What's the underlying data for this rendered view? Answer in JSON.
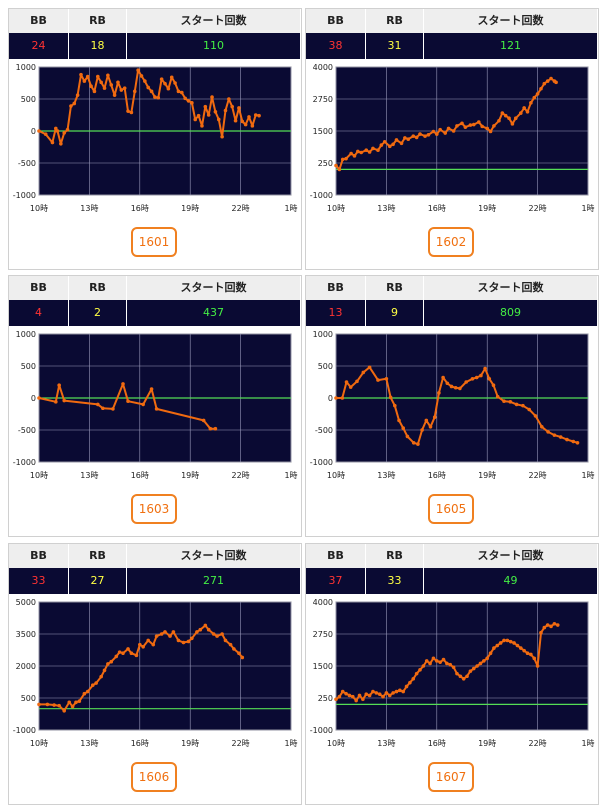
{
  "headers": {
    "bb": "BB",
    "rb": "RB",
    "starts": "スタート回数"
  },
  "colors": {
    "bb": "#ff3333",
    "rb": "#ffff44",
    "starts": "#44ee44",
    "line": "#f06a10",
    "zero": "#55dd55",
    "bg": "#0a0a33"
  },
  "panels": [
    {
      "unit": "1601",
      "bb": "24",
      "rb": "18",
      "starts": "110"
    },
    {
      "unit": "1602",
      "bb": "38",
      "rb": "31",
      "starts": "121"
    },
    {
      "unit": "1603",
      "bb": "4",
      "rb": "2",
      "starts": "437"
    },
    {
      "unit": "1605",
      "bb": "13",
      "rb": "9",
      "starts": "809"
    },
    {
      "unit": "1606",
      "bb": "33",
      "rb": "27",
      "starts": "271"
    },
    {
      "unit": "1607",
      "bb": "37",
      "rb": "33",
      "starts": "49"
    }
  ],
  "chart_data": [
    {
      "type": "line",
      "xticks": [
        "10時",
        "13時",
        "16時",
        "19時",
        "22時",
        "1時"
      ],
      "xlim": [
        10,
        25
      ],
      "yticks": [
        "1000",
        "500",
        "0",
        "-500",
        "-1000"
      ],
      "ylim": [
        -1000,
        1000
      ],
      "x": [
        10,
        10.4,
        10.8,
        11.0,
        11.1,
        11.3,
        11.5,
        11.7,
        11.9,
        12.1,
        12.3,
        12.5,
        12.7,
        12.9,
        13.1,
        13.3,
        13.5,
        13.7,
        13.9,
        14.1,
        14.3,
        14.5,
        14.7,
        14.9,
        15.1,
        15.3,
        15.5,
        15.7,
        15.9,
        16.1,
        16.3,
        16.5,
        16.7,
        16.9,
        17.1,
        17.3,
        17.5,
        17.7,
        17.9,
        18.1,
        18.3,
        18.5,
        18.7,
        18.9,
        19.1,
        19.3,
        19.5,
        19.7,
        19.9,
        20.1,
        20.3,
        20.5,
        20.7,
        20.9,
        21.1,
        21.3,
        21.5,
        21.7,
        21.9,
        22.1,
        22.3,
        22.5,
        22.7,
        22.9,
        23.1
      ],
      "y": [
        0,
        -50,
        -180,
        40,
        0,
        -200,
        -30,
        20,
        390,
        430,
        560,
        880,
        780,
        850,
        700,
        620,
        850,
        760,
        670,
        870,
        720,
        560,
        760,
        640,
        670,
        310,
        290,
        620,
        950,
        860,
        780,
        680,
        620,
        530,
        520,
        810,
        740,
        660,
        840,
        750,
        620,
        600,
        510,
        470,
        440,
        180,
        240,
        80,
        380,
        250,
        530,
        300,
        180,
        -90,
        320,
        500,
        380,
        160,
        360,
        150,
        100,
        220,
        80,
        250,
        240
      ]
    },
    {
      "type": "line",
      "xticks": [
        "10時",
        "13時",
        "16時",
        "19時",
        "22時",
        "1時"
      ],
      "xlim": [
        10,
        25
      ],
      "yticks": [
        "4000",
        "2750",
        "1500",
        "250",
        "-1000"
      ],
      "ylim": [
        -1000,
        4000
      ],
      "x": [
        10,
        10.2,
        10.4,
        10.6,
        10.9,
        11.1,
        11.3,
        11.5,
        11.8,
        12.0,
        12.2,
        12.5,
        12.7,
        12.9,
        13.2,
        13.4,
        13.6,
        13.9,
        14.1,
        14.3,
        14.6,
        14.8,
        15.0,
        15.3,
        15.5,
        15.8,
        16.0,
        16.2,
        16.5,
        16.7,
        17.0,
        17.2,
        17.5,
        17.7,
        18.0,
        18.2,
        18.5,
        18.7,
        19.0,
        19.2,
        19.4,
        19.7,
        19.9,
        20.1,
        20.3,
        20.5,
        20.7,
        21.0,
        21.2,
        21.4,
        21.6,
        21.8,
        22.0,
        22.2,
        22.4,
        22.6,
        22.8,
        23.0,
        23.1
      ],
      "y": [
        150,
        0,
        390,
        420,
        620,
        530,
        700,
        660,
        750,
        680,
        820,
        750,
        950,
        1080,
        900,
        980,
        1150,
        1020,
        1230,
        1180,
        1300,
        1250,
        1380,
        1300,
        1350,
        1480,
        1380,
        1550,
        1420,
        1600,
        1500,
        1700,
        1800,
        1650,
        1730,
        1750,
        1850,
        1680,
        1600,
        1480,
        1700,
        1900,
        2200,
        2100,
        2000,
        1780,
        2000,
        2200,
        2400,
        2250,
        2600,
        2800,
        2950,
        3150,
        3350,
        3450,
        3550,
        3450,
        3400
      ]
    },
    {
      "type": "line",
      "xticks": [
        "10時",
        "13時",
        "16時",
        "19時",
        "22時",
        "1時"
      ],
      "xlim": [
        10,
        25
      ],
      "yticks": [
        "1000",
        "500",
        "0",
        "-500",
        "-1000"
      ],
      "ylim": [
        -1000,
        1000
      ],
      "x": [
        10,
        11.0,
        11.2,
        11.5,
        13.5,
        13.8,
        14.4,
        15.0,
        15.3,
        16.2,
        16.7,
        17.0,
        19.8,
        20.2,
        20.5
      ],
      "y": [
        0,
        -60,
        200,
        -40,
        -100,
        -160,
        -170,
        220,
        -50,
        -100,
        140,
        -170,
        -350,
        -480,
        -480
      ]
    },
    {
      "type": "line",
      "xticks": [
        "10時",
        "13時",
        "16時",
        "19時",
        "22時",
        "1時"
      ],
      "xlim": [
        10,
        22
      ],
      "yticks": [
        "1000",
        "500",
        "0",
        "-500",
        "-1000"
      ],
      "ylim": [
        -1000,
        1000
      ],
      "x": [
        10,
        10.3,
        10.5,
        10.7,
        11.0,
        11.3,
        11.6,
        12.0,
        12.4,
        12.6,
        12.8,
        13.0,
        13.2,
        13.4,
        13.7,
        13.9,
        14.1,
        14.3,
        14.5,
        14.7,
        14.9,
        15.1,
        15.3,
        15.5,
        15.7,
        15.9,
        16.2,
        16.5,
        16.7,
        16.9,
        17.1,
        17.3,
        17.5,
        17.7,
        18.0,
        18.3,
        18.6,
        18.9,
        19.2,
        19.5,
        19.8,
        20.1,
        20.4,
        20.7,
        21.0,
        21.3,
        21.5
      ],
      "y": [
        0,
        0,
        250,
        170,
        260,
        400,
        480,
        280,
        300,
        10,
        -120,
        -350,
        -470,
        -600,
        -700,
        -720,
        -500,
        -350,
        -450,
        -300,
        80,
        320,
        230,
        180,
        160,
        150,
        250,
        300,
        320,
        350,
        460,
        300,
        200,
        20,
        -50,
        -60,
        -100,
        -120,
        -180,
        -280,
        -450,
        -530,
        -580,
        -610,
        -650,
        -680,
        -700
      ]
    },
    {
      "type": "line",
      "xticks": [
        "10時",
        "13時",
        "16時",
        "19時",
        "22時",
        "1時"
      ],
      "xlim": [
        10,
        25
      ],
      "yticks": [
        "5000",
        "3500",
        "2000",
        "500",
        "-1000"
      ],
      "ylim": [
        -1000,
        5000
      ],
      "x": [
        10,
        10.5,
        10.9,
        11.2,
        11.5,
        11.8,
        12.0,
        12.2,
        12.4,
        12.7,
        12.9,
        13.2,
        13.4,
        13.7,
        13.9,
        14.1,
        14.3,
        14.6,
        14.8,
        15.0,
        15.3,
        15.5,
        15.8,
        16.0,
        16.2,
        16.5,
        16.8,
        17.0,
        17.3,
        17.5,
        17.8,
        18.0,
        18.3,
        18.6,
        18.9,
        19.1,
        19.4,
        19.6,
        19.9,
        20.1,
        20.4,
        20.6,
        20.9,
        21.1,
        21.4,
        21.6,
        21.9,
        22.1
      ],
      "y": [
        200,
        200,
        170,
        140,
        -100,
        300,
        100,
        300,
        350,
        700,
        800,
        1100,
        1200,
        1500,
        1800,
        2100,
        2200,
        2450,
        2650,
        2600,
        2800,
        2600,
        2500,
        3000,
        2900,
        3200,
        3000,
        3400,
        3500,
        3600,
        3400,
        3600,
        3200,
        3100,
        3150,
        3300,
        3600,
        3700,
        3900,
        3700,
        3500,
        3400,
        3500,
        3200,
        3000,
        2800,
        2600,
        2400
      ]
    },
    {
      "type": "line",
      "xticks": [
        "10時",
        "13時",
        "16時",
        "19時",
        "22時",
        "1時"
      ],
      "xlim": [
        10,
        25
      ],
      "yticks": [
        "4000",
        "2750",
        "1500",
        "250",
        "-1000"
      ],
      "ylim": [
        -1000,
        4000
      ],
      "x": [
        10,
        10.2,
        10.4,
        10.6,
        10.8,
        11.0,
        11.2,
        11.4,
        11.6,
        11.8,
        12.0,
        12.2,
        12.4,
        12.6,
        12.8,
        13.0,
        13.2,
        13.4,
        13.6,
        13.8,
        14.0,
        14.2,
        14.4,
        14.6,
        14.8,
        15.0,
        15.2,
        15.4,
        15.6,
        15.8,
        16.0,
        16.2,
        16.4,
        16.6,
        16.8,
        17.0,
        17.2,
        17.4,
        17.6,
        17.8,
        18.0,
        18.2,
        18.4,
        18.6,
        18.8,
        19.0,
        19.2,
        19.4,
        19.6,
        19.8,
        20.0,
        20.2,
        20.4,
        20.6,
        20.8,
        21.0,
        21.2,
        21.4,
        21.6,
        21.8,
        22.0,
        22.2,
        22.4,
        22.6,
        22.8,
        23.0,
        23.2
      ],
      "y": [
        200,
        300,
        500,
        420,
        350,
        300,
        150,
        350,
        200,
        400,
        350,
        500,
        450,
        400,
        300,
        450,
        350,
        450,
        500,
        550,
        500,
        700,
        850,
        1000,
        1200,
        1350,
        1500,
        1700,
        1600,
        1800,
        1700,
        1650,
        1750,
        1600,
        1550,
        1450,
        1200,
        1100,
        1000,
        1100,
        1300,
        1400,
        1500,
        1600,
        1700,
        1800,
        2000,
        2200,
        2300,
        2400,
        2500,
        2500,
        2450,
        2400,
        2300,
        2200,
        2100,
        2000,
        1950,
        1800,
        1500,
        2800,
        3000,
        3100,
        3050,
        3150,
        3100
      ]
    }
  ]
}
